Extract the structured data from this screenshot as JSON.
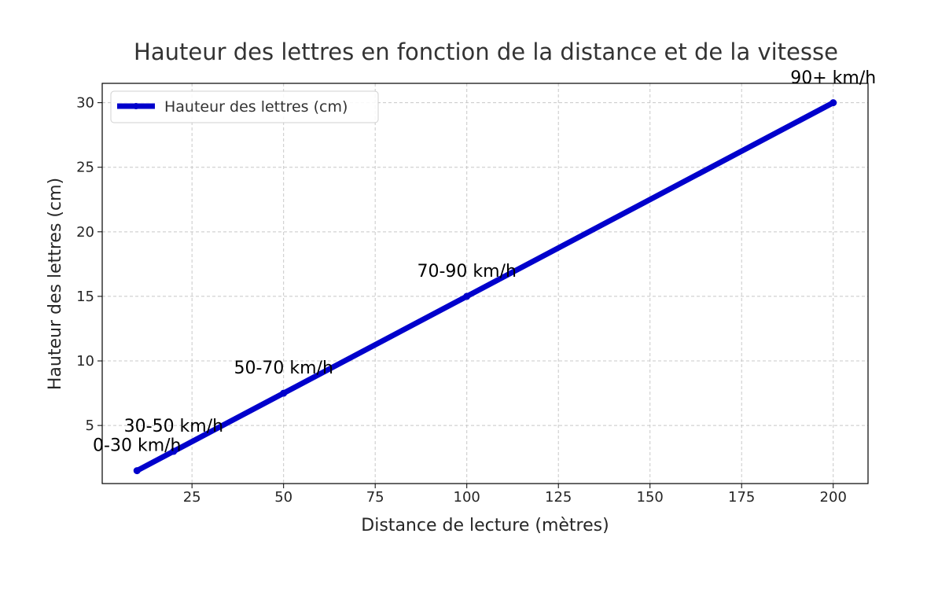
{
  "chart_data": {
    "type": "line",
    "title": "Hauteur des lettres en fonction de la distance et de la vitesse",
    "xlabel": "Distance de lecture (mètres)",
    "ylabel": "Hauteur des lettres (cm)",
    "xlim": [
      0.5,
      209.5
    ],
    "ylim": [
      0.5,
      31.5
    ],
    "x_ticks": [
      25,
      50,
      75,
      100,
      125,
      150,
      175,
      200
    ],
    "y_ticks": [
      5,
      10,
      15,
      20,
      25,
      30
    ],
    "grid": true,
    "legend_position": "top-left",
    "series": [
      {
        "name": "Hauteur des lettres (cm)",
        "color": "#0000cc",
        "x": [
          10,
          20,
          50,
          100,
          200
        ],
        "y": [
          1.5,
          3,
          7.5,
          15,
          30
        ]
      }
    ],
    "annotations": [
      {
        "text": "0-30 km/h",
        "x": 10,
        "y": 3.5
      },
      {
        "text": "30-50 km/h",
        "x": 20,
        "y": 5
      },
      {
        "text": "50-70 km/h",
        "x": 50,
        "y": 9.5
      },
      {
        "text": "70-90 km/h",
        "x": 100,
        "y": 17
      },
      {
        "text": "90+ km/h",
        "x": 200,
        "y": 32
      }
    ]
  }
}
